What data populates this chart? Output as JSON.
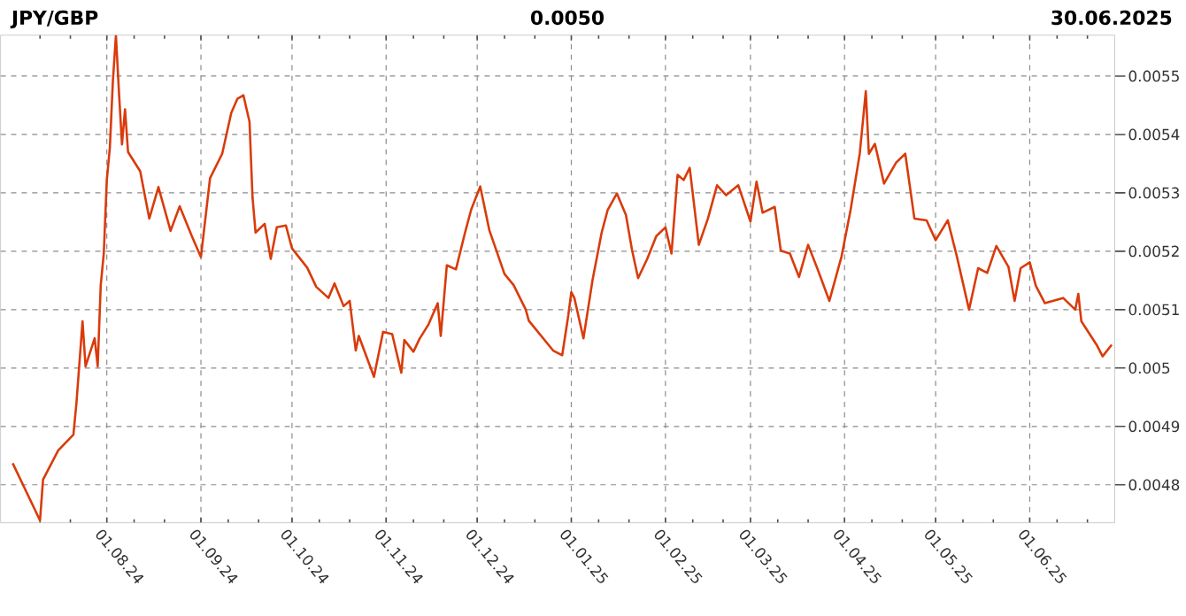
{
  "chart_data": {
    "type": "line",
    "title": "JPY/GBP",
    "subtitle": "0.0050",
    "annotations": [
      "30.06.2025"
    ],
    "color": "#d93b0b",
    "grid": true,
    "x": [
      "2024-07-01",
      "2024-07-10",
      "2024-07-11",
      "2024-07-16",
      "2024-07-21",
      "2024-07-22",
      "2024-07-24",
      "2024-07-25",
      "2024-07-28",
      "2024-07-29",
      "2024-07-30",
      "2024-07-31",
      "2024-08-01",
      "2024-08-02",
      "2024-08-03",
      "2024-08-04",
      "2024-08-05",
      "2024-08-06",
      "2024-08-07",
      "2024-08-08",
      "2024-08-12",
      "2024-08-15",
      "2024-08-18",
      "2024-08-22",
      "2024-08-25",
      "2024-08-29",
      "2024-09-01",
      "2024-09-04",
      "2024-09-08",
      "2024-09-11",
      "2024-09-13",
      "2024-09-15",
      "2024-09-17",
      "2024-09-18",
      "2024-09-19",
      "2024-09-22",
      "2024-09-24",
      "2024-09-26",
      "2024-09-29",
      "2024-10-01",
      "2024-10-06",
      "2024-10-09",
      "2024-10-13",
      "2024-10-15",
      "2024-10-18",
      "2024-10-20",
      "2024-10-22",
      "2024-10-23",
      "2024-10-28",
      "2024-10-31",
      "2024-11-03",
      "2024-11-06",
      "2024-11-07",
      "2024-11-10",
      "2024-11-12",
      "2024-11-15",
      "2024-11-18",
      "2024-11-19",
      "2024-11-21",
      "2024-11-24",
      "2024-11-27",
      "2024-11-29",
      "2024-12-02",
      "2024-12-03",
      "2024-12-05",
      "2024-12-07",
      "2024-12-10",
      "2024-12-13",
      "2024-12-17",
      "2024-12-18",
      "2024-12-26",
      "2024-12-29",
      "2024-12-31",
      "2025-01-01",
      "2025-01-02",
      "2025-01-05",
      "2025-01-08",
      "2025-01-11",
      "2025-01-13",
      "2025-01-16",
      "2025-01-19",
      "2025-01-21",
      "2025-01-23",
      "2025-01-26",
      "2025-01-29",
      "2025-02-01",
      "2025-02-03",
      "2025-02-05",
      "2025-02-07",
      "2025-02-09",
      "2025-02-12",
      "2025-02-15",
      "2025-02-18",
      "2025-02-21",
      "2025-02-25",
      "2025-03-01",
      "2025-03-03",
      "2025-03-05",
      "2025-03-09",
      "2025-03-11",
      "2025-03-14",
      "2025-03-17",
      "2025-03-20",
      "2025-03-23",
      "2025-03-27",
      "2025-03-31",
      "2025-04-03",
      "2025-04-06",
      "2025-04-08",
      "2025-04-09",
      "2025-04-11",
      "2025-04-14",
      "2025-04-18",
      "2025-04-21",
      "2025-04-24",
      "2025-04-28",
      "2025-05-01",
      "2025-05-05",
      "2025-05-08",
      "2025-05-12",
      "2025-05-15",
      "2025-05-18",
      "2025-05-21",
      "2025-05-25",
      "2025-05-27",
      "2025-05-29",
      "2025-06-01",
      "2025-06-03",
      "2025-06-06",
      "2025-06-12",
      "2025-06-16",
      "2025-06-17",
      "2025-06-18",
      "2025-06-23",
      "2025-06-25",
      "2025-06-28"
    ],
    "values": [
      0.004837,
      0.004739,
      0.004809,
      0.004859,
      0.004886,
      0.00494,
      0.00508,
      0.005003,
      0.005051,
      0.005003,
      0.005142,
      0.005196,
      0.005322,
      0.005377,
      0.005491,
      0.00557,
      0.005473,
      0.005383,
      0.005443,
      0.00537,
      0.005337,
      0.005256,
      0.00531,
      0.005235,
      0.005277,
      0.005226,
      0.00519,
      0.005325,
      0.005367,
      0.005437,
      0.005461,
      0.005467,
      0.005422,
      0.005292,
      0.005232,
      0.005247,
      0.005187,
      0.005241,
      0.005244,
      0.005205,
      0.005172,
      0.005139,
      0.00512,
      0.005145,
      0.005106,
      0.005115,
      0.00503,
      0.005055,
      0.004985,
      0.005062,
      0.005058,
      0.004992,
      0.005048,
      0.005028,
      0.00505,
      0.005075,
      0.005111,
      0.005055,
      0.005176,
      0.005169,
      0.005232,
      0.005271,
      0.005311,
      0.005286,
      0.005236,
      0.005206,
      0.005161,
      0.005142,
      0.0051,
      0.005081,
      0.00503,
      0.005022,
      0.00509,
      0.00513,
      0.00512,
      0.005051,
      0.005151,
      0.005232,
      0.005271,
      0.005299,
      0.005262,
      0.005202,
      0.005154,
      0.005187,
      0.005226,
      0.005241,
      0.005196,
      0.005331,
      0.005322,
      0.005343,
      0.005211,
      0.005256,
      0.005313,
      0.005296,
      0.005313,
      0.005251,
      0.005319,
      0.005266,
      0.005276,
      0.005201,
      0.005196,
      0.005156,
      0.005211,
      0.005171,
      0.005115,
      0.005191,
      0.005271,
      0.005367,
      0.005474,
      0.005367,
      0.005384,
      0.005316,
      0.005352,
      0.005367,
      0.005256,
      0.005253,
      0.005219,
      0.005253,
      0.005191,
      0.0051,
      0.005171,
      0.005163,
      0.005209,
      0.005173,
      0.005115,
      0.005171,
      0.005181,
      0.005141,
      0.005111,
      0.00512,
      0.0051,
      0.005127,
      0.00508,
      0.00504,
      0.00502,
      0.00504
    ],
    "xlim": [
      "2024-06-27",
      "2025-06-29"
    ],
    "ylim": [
      0.004735,
      0.00557
    ],
    "yticks": [
      0.0048,
      0.0049,
      0.005,
      0.0051,
      0.0052,
      0.0053,
      0.0054,
      0.0055
    ],
    "xticks": [
      {
        "value": "2024-07-10",
        "label": null
      },
      {
        "value": "2024-07-20",
        "label": null
      },
      {
        "value": "2024-08-01",
        "label": "01.08.24"
      },
      {
        "value": "2024-08-10",
        "label": null
      },
      {
        "value": "2024-08-20",
        "label": null
      },
      {
        "value": "2024-09-01",
        "label": "01.09.24"
      },
      {
        "value": "2024-09-10",
        "label": null
      },
      {
        "value": "2024-09-20",
        "label": null
      },
      {
        "value": "2024-10-01",
        "label": "01.10.24"
      },
      {
        "value": "2024-10-10",
        "label": null
      },
      {
        "value": "2024-10-20",
        "label": null
      },
      {
        "value": "2024-11-01",
        "label": "01.11.24"
      },
      {
        "value": "2024-11-10",
        "label": null
      },
      {
        "value": "2024-11-20",
        "label": null
      },
      {
        "value": "2024-12-01",
        "label": "01.12.24"
      },
      {
        "value": "2024-12-10",
        "label": null
      },
      {
        "value": "2024-12-20",
        "label": null
      },
      {
        "value": "2025-01-01",
        "label": "01.01.25"
      },
      {
        "value": "2025-01-10",
        "label": null
      },
      {
        "value": "2025-01-20",
        "label": null
      },
      {
        "value": "2025-02-01",
        "label": "01.02.25"
      },
      {
        "value": "2025-02-10",
        "label": null
      },
      {
        "value": "2025-02-20",
        "label": null
      },
      {
        "value": "2025-03-01",
        "label": "01.03.25"
      },
      {
        "value": "2025-03-10",
        "label": null
      },
      {
        "value": "2025-03-20",
        "label": null
      },
      {
        "value": "2025-04-01",
        "label": "01.04.25"
      },
      {
        "value": "2025-04-10",
        "label": null
      },
      {
        "value": "2025-04-20",
        "label": null
      },
      {
        "value": "2025-05-01",
        "label": "01.05.25"
      },
      {
        "value": "2025-05-10",
        "label": null
      },
      {
        "value": "2025-05-20",
        "label": null
      },
      {
        "value": "2025-06-01",
        "label": "01.06.25"
      },
      {
        "value": "2025-06-10",
        "label": null
      },
      {
        "value": "2025-06-20",
        "label": null
      }
    ]
  }
}
